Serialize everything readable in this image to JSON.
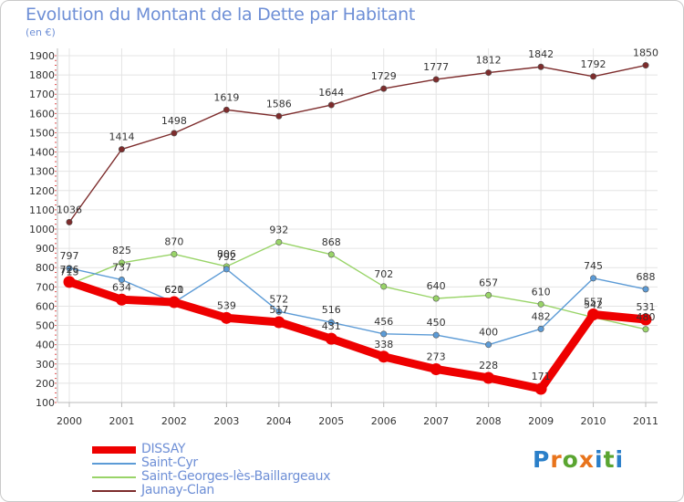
{
  "title": "Evolution du Montant de la Dette par Habitant",
  "subtitle": "(en €)",
  "logo": {
    "text": "Proxiti",
    "letter_colors": [
      "#2a7fc9",
      "#e8741c",
      "#5aa531",
      "#e8741c",
      "#2a7fc9",
      "#5aa531",
      "#2a7fc9"
    ]
  },
  "chart_data": {
    "type": "line",
    "title": "Evolution du Montant de la Dette par Habitant",
    "ylabel": "(en €)",
    "xlabel": "",
    "x": [
      "2000",
      "2001",
      "2002",
      "2003",
      "2004",
      "2005",
      "2006",
      "2007",
      "2008",
      "2009",
      "2010",
      "2011"
    ],
    "ylim": [
      100,
      1900
    ],
    "yticks": [
      100,
      200,
      300,
      400,
      500,
      600,
      700,
      800,
      900,
      1000,
      1100,
      1200,
      1300,
      1400,
      1500,
      1600,
      1700,
      1800,
      1900
    ],
    "grid": true,
    "legend_position": "bottom-left",
    "series": [
      {
        "name": "DISSAY",
        "color": "#ee0000",
        "values": [
          726,
          634,
          621,
          539,
          517,
          431,
          338,
          273,
          228,
          171,
          557,
          531
        ]
      },
      {
        "name": "Saint-Cyr",
        "color": "#5c9bd6",
        "values": [
          797,
          737,
          620,
          792,
          572,
          516,
          456,
          450,
          400,
          482,
          745,
          688
        ]
      },
      {
        "name": "Saint-Georges-lès-Baillargeaux",
        "color": "#99d468",
        "values": [
          713,
          825,
          870,
          806,
          932,
          868,
          702,
          640,
          657,
          610,
          542,
          480
        ]
      },
      {
        "name": "Jaunay-Clan",
        "color": "#7d2c2c",
        "values": [
          1036,
          1414,
          1498,
          1619,
          1586,
          1644,
          1729,
          1777,
          1812,
          1842,
          1792,
          1850
        ]
      }
    ]
  }
}
